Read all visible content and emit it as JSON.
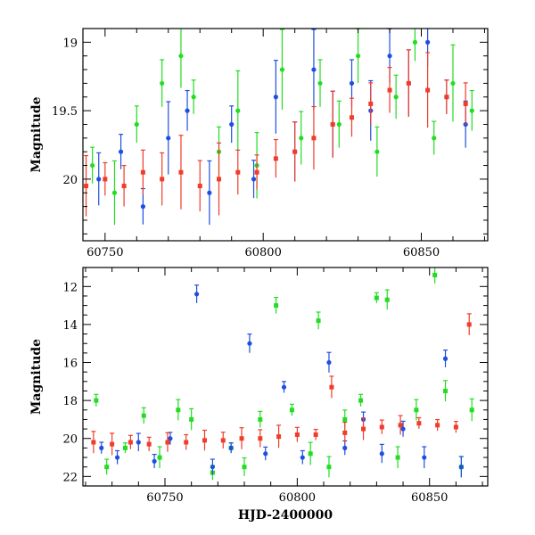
{
  "chart_data": [
    {
      "type": "scatter",
      "panel": "top",
      "xlabel": "",
      "ylabel": "Magnitude",
      "xlim": [
        60743,
        60871
      ],
      "ylim": [
        20.45,
        18.9
      ],
      "y_inverted": true,
      "x_ticks": [
        60750,
        60800,
        60850
      ],
      "y_ticks": [
        19,
        19.5,
        20
      ],
      "grid": false,
      "series": [
        {
          "color": "#22dd22",
          "marker": "circle",
          "errorbars": true,
          "points": [
            [
              60746,
              19.9
            ],
            [
              60753,
              20.1
            ],
            [
              60760,
              19.6
            ],
            [
              60768,
              19.3
            ],
            [
              60774,
              19.1
            ],
            [
              60778,
              19.4
            ],
            [
              60786,
              19.8
            ],
            [
              60792,
              19.5
            ],
            [
              60798,
              19.9
            ],
            [
              60806,
              19.2
            ],
            [
              60812,
              19.7
            ],
            [
              60818,
              19.3
            ],
            [
              60824,
              19.6
            ],
            [
              60830,
              19.1
            ],
            [
              60836,
              19.8
            ],
            [
              60842,
              19.4
            ],
            [
              60848,
              19.0
            ],
            [
              60854,
              19.7
            ],
            [
              60860,
              19.3
            ],
            [
              60866,
              19.5
            ]
          ]
        },
        {
          "color": "#1f4fe0",
          "marker": "circle",
          "errorbars": true,
          "points": [
            [
              60748,
              20.0
            ],
            [
              60755,
              19.8
            ],
            [
              60762,
              20.2
            ],
            [
              60770,
              19.7
            ],
            [
              60776,
              19.5
            ],
            [
              60783,
              20.1
            ],
            [
              60790,
              19.6
            ],
            [
              60797,
              20.0
            ],
            [
              60804,
              19.4
            ],
            [
              60810,
              19.8
            ],
            [
              60816,
              19.2
            ],
            [
              60822,
              19.6
            ],
            [
              60828,
              19.3
            ],
            [
              60834,
              19.5
            ],
            [
              60840,
              19.1
            ],
            [
              60846,
              19.3
            ],
            [
              60852,
              19.0
            ],
            [
              60858,
              19.4
            ],
            [
              60864,
              19.6
            ]
          ]
        },
        {
          "color": "#f03c2a",
          "marker": "square",
          "errorbars": true,
          "points": [
            [
              60744,
              20.05
            ],
            [
              60750,
              20.0
            ],
            [
              60756,
              20.05
            ],
            [
              60762,
              19.95
            ],
            [
              60768,
              20.0
            ],
            [
              60774,
              19.95
            ],
            [
              60780,
              20.05
            ],
            [
              60786,
              20.0
            ],
            [
              60792,
              19.95
            ],
            [
              60798,
              19.95
            ],
            [
              60804,
              19.85
            ],
            [
              60810,
              19.8
            ],
            [
              60816,
              19.7
            ],
            [
              60822,
              19.6
            ],
            [
              60828,
              19.55
            ],
            [
              60834,
              19.45
            ],
            [
              60840,
              19.35
            ],
            [
              60846,
              19.3
            ],
            [
              60852,
              19.35
            ],
            [
              60858,
              19.4
            ],
            [
              60864,
              19.45
            ]
          ]
        }
      ]
    },
    {
      "type": "scatter",
      "panel": "bottom",
      "xlabel": "HJD-2400000",
      "ylabel": "Magnitude",
      "xlim": [
        60719,
        60872
      ],
      "ylim": [
        22.5,
        11
      ],
      "y_inverted": true,
      "x_ticks": [
        60750,
        60800,
        60850
      ],
      "y_ticks": [
        12,
        14,
        16,
        18,
        20,
        22
      ],
      "grid": false,
      "series": [
        {
          "color": "#22dd22",
          "marker": "square",
          "errorbars": true,
          "points": [
            [
              60724,
              18.0
            ],
            [
              60728,
              21.5
            ],
            [
              60735,
              20.5
            ],
            [
              60742,
              18.8
            ],
            [
              60748,
              21.0
            ],
            [
              60755,
              18.5
            ],
            [
              60760,
              19.0
            ],
            [
              60768,
              21.8
            ],
            [
              60775,
              20.5
            ],
            [
              60780,
              21.5
            ],
            [
              60786,
              19.0
            ],
            [
              60792,
              13.0
            ],
            [
              60798,
              18.5
            ],
            [
              60805,
              20.8
            ],
            [
              60808,
              13.8
            ],
            [
              60812,
              21.5
            ],
            [
              60818,
              19.0
            ],
            [
              60824,
              18.0
            ],
            [
              60830,
              12.6
            ],
            [
              60834,
              12.7
            ],
            [
              60838,
              21.0
            ],
            [
              60845,
              18.5
            ],
            [
              60852,
              11.4
            ],
            [
              60856,
              17.5
            ],
            [
              60862,
              21.5
            ],
            [
              60866,
              18.5
            ]
          ]
        },
        {
          "color": "#1f4fe0",
          "marker": "circle",
          "errorbars": true,
          "points": [
            [
              60726,
              20.5
            ],
            [
              60732,
              21.0
            ],
            [
              60740,
              20.2
            ],
            [
              60746,
              21.2
            ],
            [
              60752,
              20.0
            ],
            [
              60762,
              12.4
            ],
            [
              60768,
              21.5
            ],
            [
              60775,
              20.5
            ],
            [
              60782,
              15.0
            ],
            [
              60788,
              20.8
            ],
            [
              60795,
              17.3
            ],
            [
              60802,
              21.0
            ],
            [
              60812,
              16.0
            ],
            [
              60818,
              20.5
            ],
            [
              60825,
              19.0
            ],
            [
              60832,
              20.8
            ],
            [
              60840,
              19.5
            ],
            [
              60848,
              21.0
            ],
            [
              60856,
              15.8
            ],
            [
              60862,
              21.5
            ]
          ]
        },
        {
          "color": "#f03c2a",
          "marker": "square",
          "errorbars": true,
          "points": [
            [
              60723,
              20.2
            ],
            [
              60730,
              20.3
            ],
            [
              60737,
              20.2
            ],
            [
              60744,
              20.3
            ],
            [
              60751,
              20.2
            ],
            [
              60758,
              20.2
            ],
            [
              60765,
              20.1
            ],
            [
              60772,
              20.1
            ],
            [
              60779,
              20.0
            ],
            [
              60786,
              20.0
            ],
            [
              60793,
              19.9
            ],
            [
              60800,
              19.8
            ],
            [
              60807,
              19.8
            ],
            [
              60813,
              17.3
            ],
            [
              60818,
              19.7
            ],
            [
              60825,
              19.5
            ],
            [
              60832,
              19.4
            ],
            [
              60839,
              19.3
            ],
            [
              60846,
              19.2
            ],
            [
              60853,
              19.3
            ],
            [
              60860,
              19.4
            ],
            [
              60865,
              14.0
            ]
          ]
        }
      ]
    }
  ]
}
